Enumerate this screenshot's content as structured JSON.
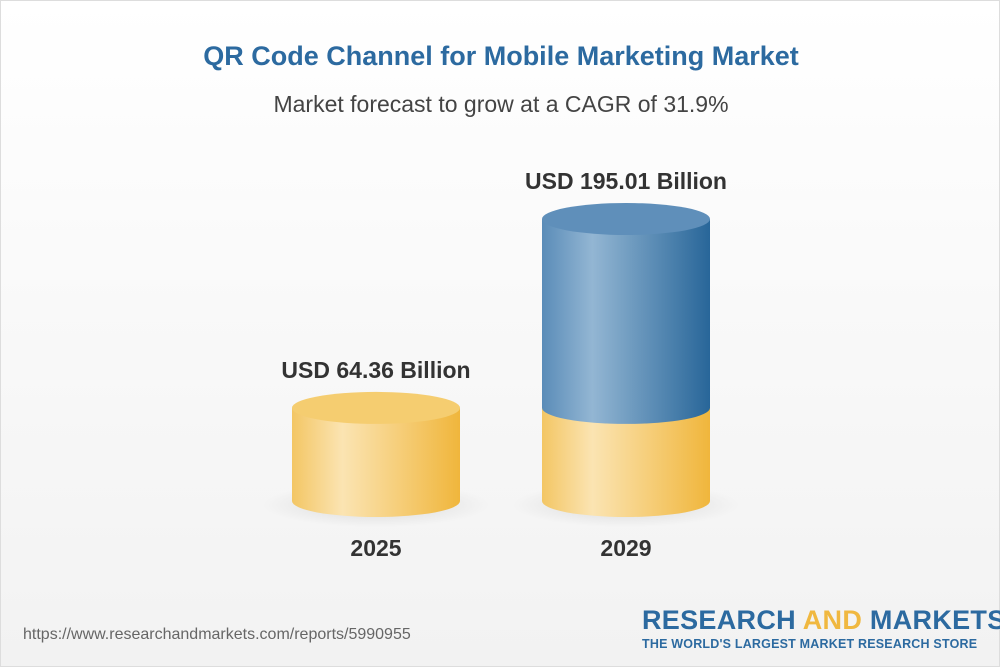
{
  "chart_data": {
    "type": "bar",
    "style": "3d-cylinder",
    "title": "QR Code Channel for Mobile Marketing Market",
    "subtitle": "Market forecast to grow at a CAGR of 31.9%",
    "categories": [
      "2025",
      "2029"
    ],
    "values": [
      64.36,
      195.01
    ],
    "data_labels": [
      "USD 64.36 Billion",
      "USD 195.01 Billion"
    ],
    "colors": {
      "base": "#f3c35a",
      "growth": "#4a80b0"
    }
  },
  "footer": {
    "url": "https://www.researchandmarkets.com/reports/5990955",
    "logo_part1": "RESEARCH ",
    "logo_part2": "AND",
    "logo_part3": " MARKETS",
    "tagline": "THE WORLD'S LARGEST MARKET RESEARCH STORE"
  }
}
